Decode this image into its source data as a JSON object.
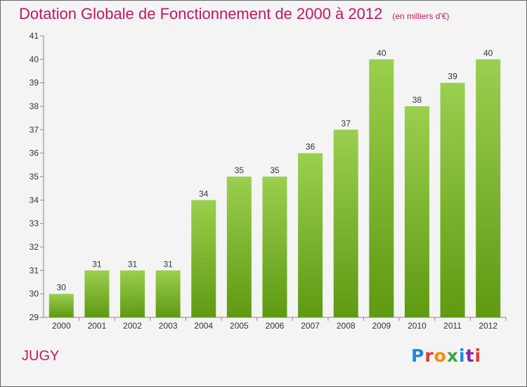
{
  "header": {
    "title": "Dotation Globale de Fonctionnement de 2000 à 2012",
    "subtitle": "(en milliers d'€)"
  },
  "footer": {
    "place": "JUGY",
    "logo": "Proxiti"
  },
  "colors": {
    "title": "#c2185b",
    "bar_top": "#9bcf4f",
    "bar_bottom": "#5e9a12",
    "background": "#f4f4f4"
  },
  "chart_data": {
    "type": "bar",
    "categories": [
      "2000",
      "2001",
      "2002",
      "2003",
      "2004",
      "2005",
      "2006",
      "2007",
      "2008",
      "2009",
      "2010",
      "2011",
      "2012"
    ],
    "values": [
      30,
      31,
      31,
      31,
      34,
      35,
      35,
      36,
      37,
      40,
      38,
      39,
      40
    ],
    "title": "Dotation Globale de Fonctionnement de 2000 à 2012",
    "xlabel": "",
    "ylabel": "",
    "ylim": [
      29,
      41
    ],
    "yticks": [
      29,
      30,
      31,
      32,
      33,
      34,
      35,
      36,
      37,
      38,
      39,
      40,
      41
    ],
    "grid": false,
    "data_labels": true
  }
}
